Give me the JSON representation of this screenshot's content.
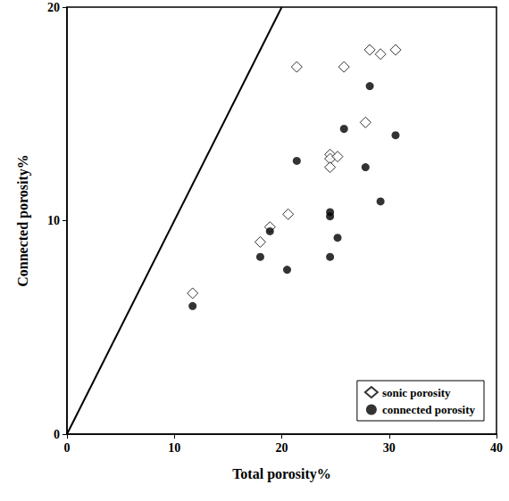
{
  "chart_data": {
    "type": "scatter",
    "x_label": "Total porosity%",
    "y_label": "Connected porosity%",
    "xlim": [
      0,
      40
    ],
    "xticks": [
      0,
      10,
      20,
      30,
      40
    ],
    "ylim": [
      0,
      20
    ],
    "yticks": [
      0,
      10,
      20
    ],
    "grid": false,
    "legend": "lower right",
    "series": [
      {
        "name": "sonic porosity",
        "color": "#000000",
        "marker": "open_diamond",
        "x": [
          11.7,
          18.0,
          18.9,
          20.6,
          21.4,
          24.5,
          24.5,
          24.5,
          25.2,
          25.8,
          27.8,
          28.2,
          29.2,
          30.6
        ],
        "values": [
          6.6,
          9.0,
          9.7,
          10.3,
          17.2,
          13.1,
          12.9,
          12.5,
          13.0,
          17.2,
          14.6,
          18.0,
          17.8,
          18.0
        ]
      },
      {
        "name": "connected porosity",
        "color": "#000000",
        "marker": "filled_circle",
        "x": [
          11.7,
          18.0,
          18.9,
          20.5,
          21.4,
          24.5,
          24.5,
          24.5,
          25.2,
          25.8,
          27.8,
          28.2,
          29.2,
          30.6
        ],
        "values": [
          6.0,
          8.3,
          9.5,
          7.7,
          12.8,
          10.4,
          10.2,
          8.3,
          9.2,
          14.3,
          12.5,
          16.3,
          10.9,
          14.0
        ]
      }
    ],
    "lines": [
      {
        "type": "line",
        "color": "#000000",
        "line_style": "solid",
        "x": [
          0,
          20
        ],
        "values": [
          0,
          20
        ]
      }
    ]
  }
}
